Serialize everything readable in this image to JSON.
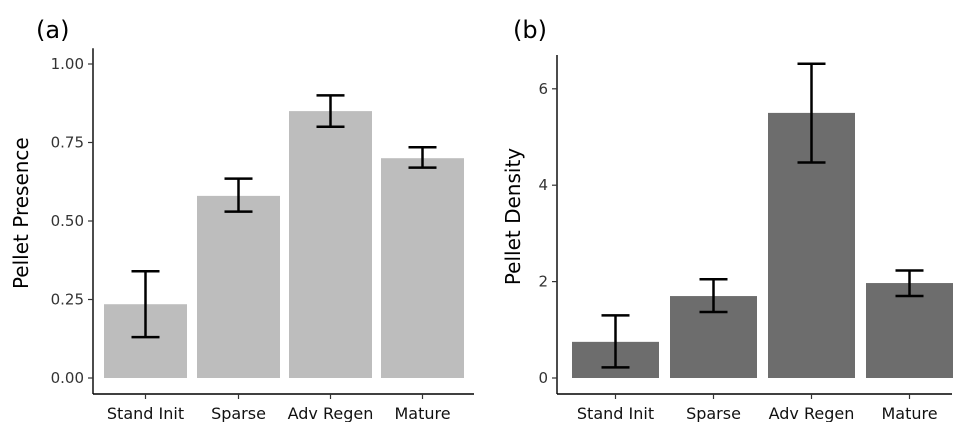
{
  "chart_data": [
    {
      "type": "bar",
      "panel_label": "(a)",
      "title": "",
      "xlabel": "",
      "ylabel": "Pellet Presence",
      "categories": [
        "Stand Init",
        "Sparse",
        "Adv Regen",
        "Mature"
      ],
      "values": [
        0.235,
        0.58,
        0.85,
        0.7
      ],
      "error_low": [
        0.13,
        0.53,
        0.8,
        0.67
      ],
      "error_high": [
        0.34,
        0.635,
        0.9,
        0.735
      ],
      "yticks": [
        "0.00",
        "0.25",
        "0.50",
        "0.75",
        "1.00"
      ],
      "ylim": [
        0,
        1.05
      ],
      "bar_color": "#bdbdbd",
      "grid": false,
      "legend": "none"
    },
    {
      "type": "bar",
      "panel_label": "(b)",
      "title": "",
      "xlabel": "",
      "ylabel": "Pellet Density",
      "categories": [
        "Stand Init",
        "Sparse",
        "Adv Regen",
        "Mature"
      ],
      "values": [
        0.75,
        1.7,
        5.5,
        1.97
      ],
      "error_low": [
        0.22,
        1.37,
        4.47,
        1.7
      ],
      "error_high": [
        1.3,
        2.05,
        6.52,
        2.23
      ],
      "yticks": [
        "0",
        "2",
        "4",
        "6"
      ],
      "ylim": [
        0,
        6.7
      ],
      "bar_color": "#6d6d6d",
      "grid": false,
      "legend": "none"
    }
  ]
}
